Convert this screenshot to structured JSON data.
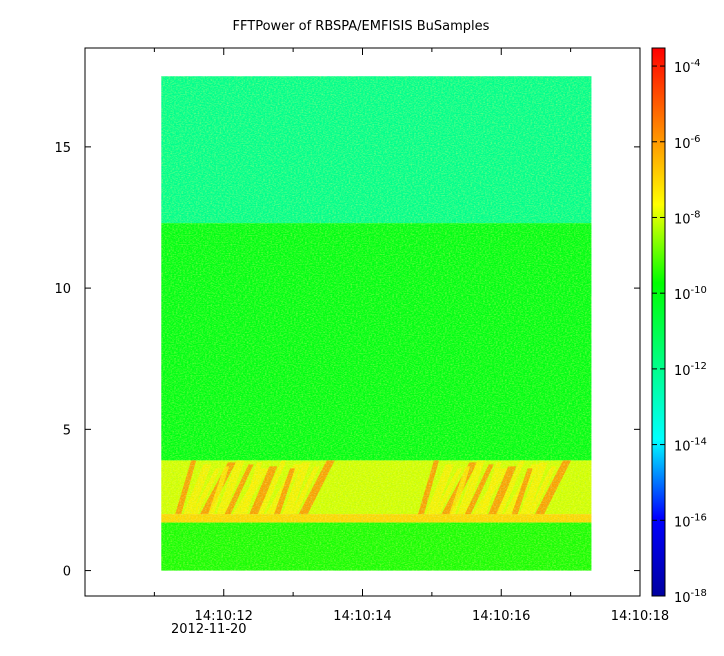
{
  "chart_data": {
    "type": "heatmap",
    "title": "FFTPower of RBSPA/EMFISIS  BuSamples",
    "xlabel": "",
    "ylabel": "",
    "date_label": "2012-11-20",
    "x": {
      "range": [
        "14:10:10.0",
        "14:10:18.0"
      ],
      "data_range": [
        "14:10:11.1",
        "14:10:17.3"
      ],
      "major_ticks": [
        "14:10:12",
        "14:10:14",
        "14:10:16",
        "14:10:18"
      ],
      "minor_ticks": [
        "14:10:11",
        "14:10:13",
        "14:10:15",
        "14:10:17"
      ]
    },
    "y": {
      "range": [
        -0.9,
        18.5
      ],
      "data_range": [
        0.0,
        17.5
      ],
      "ticks": [
        0,
        5,
        10,
        15
      ]
    },
    "colorbar": {
      "scale": "log",
      "range": [
        1e-18,
        0.0003
      ],
      "colormap": [
        "#0000a0",
        "#0000ff",
        "#00ffff",
        "#00ff80",
        "#00ff00",
        "#ffff00",
        "#ff8000",
        "#ff0000"
      ],
      "ticks": [
        {
          "base": "10",
          "exponent": "-18",
          "value": 1e-18
        },
        {
          "base": "10",
          "exponent": "-16",
          "value": 1e-16
        },
        {
          "base": "10",
          "exponent": "-14",
          "value": 1e-14
        },
        {
          "base": "10",
          "exponent": "-12",
          "value": 1e-12
        },
        {
          "base": "10",
          "exponent": "-10",
          "value": 1e-10
        },
        {
          "base": "10",
          "exponent": "-8",
          "value": 1e-08
        },
        {
          "base": "10",
          "exponent": "-6",
          "value": 1e-06
        },
        {
          "base": "10",
          "exponent": "-4",
          "value": 0.0001
        }
      ]
    },
    "grid": false,
    "legend": "colorbar-right",
    "power_bands": [
      {
        "y_range": [
          12.3,
          17.5
        ],
        "typical_power": 1e-12
      },
      {
        "y_range": [
          3.9,
          12.3
        ],
        "typical_power": 1e-10
      },
      {
        "y_range": [
          2.0,
          3.9
        ],
        "typical_power": 1e-08
      },
      {
        "y_range": [
          1.7,
          2.0
        ],
        "typical_power": 1e-07
      },
      {
        "y_range": [
          0.0,
          1.7
        ],
        "typical_power": 3e-10
      }
    ],
    "emissions": [
      {
        "time_range": [
          "14:10:11.3",
          "14:10:13.2"
        ],
        "y_range": [
          2.0,
          3.9
        ],
        "peak_power": 1e-06
      },
      {
        "time_range": [
          "14:10:14.8",
          "14:10:16.6"
        ],
        "y_range": [
          2.0,
          3.9
        ],
        "peak_power": 1e-06
      }
    ]
  }
}
